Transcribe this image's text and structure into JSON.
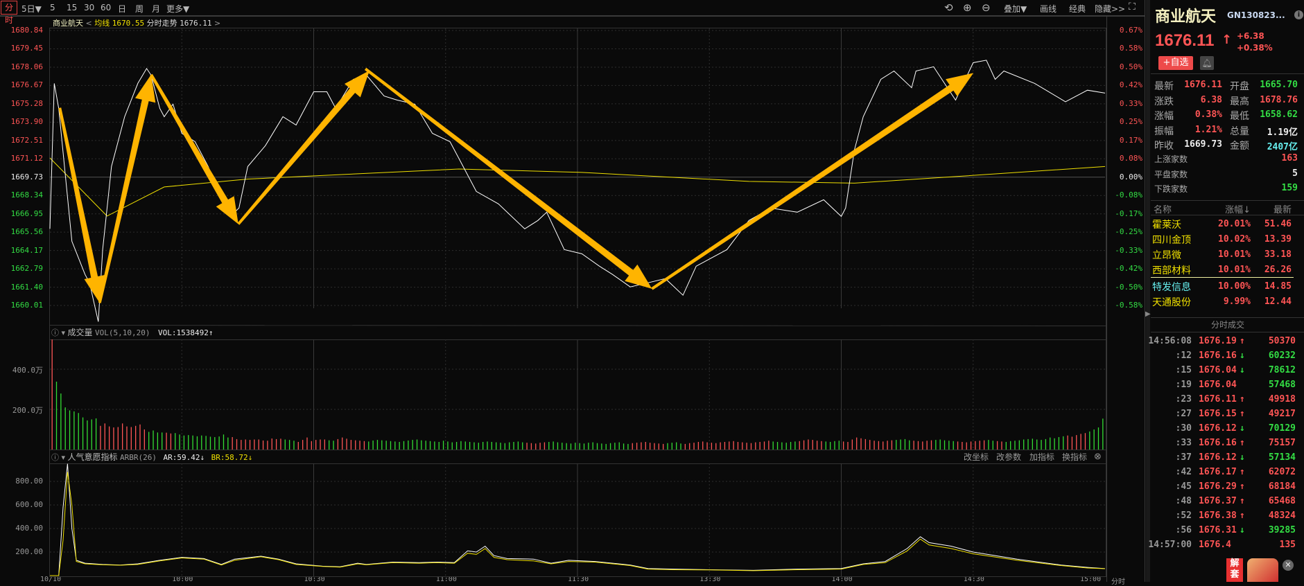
{
  "toolbar": {
    "periods": [
      "分时",
      "5日▼",
      "5",
      "15",
      "30",
      "60",
      "日",
      "周",
      "月",
      "更多▼"
    ],
    "active_period": "分时",
    "right_tools": {
      "undo_icon": "undo-icon",
      "zoom_in_icon": "zoom-in-icon",
      "zoom_out_icon": "zoom-out-icon",
      "overlay": "叠加▼",
      "draw": "画线",
      "classic": "经典",
      "hide": "隐藏>>",
      "fullscreen_icon": "fullscreen-icon"
    }
  },
  "info_line": {
    "name": "商业航天",
    "avg_label": "均线",
    "avg_value": "1670.55",
    "trend_label": "分时走势",
    "trend_value": "1676.11",
    "open_bracket": "<",
    "close_bracket": ">"
  },
  "price_axis": {
    "left": [
      "1680.84",
      "1679.45",
      "1678.06",
      "1676.67",
      "1675.28",
      "1673.90",
      "1672.51",
      "1671.12",
      "1669.73",
      "1668.34",
      "1666.95",
      "1665.56",
      "1664.17",
      "1662.79",
      "1661.40",
      "1660.01"
    ],
    "right": [
      "0.67%",
      "0.58%",
      "0.50%",
      "0.42%",
      "0.33%",
      "0.25%",
      "0.17%",
      "0.08%",
      "0.00%",
      "-0.08%",
      "-0.17%",
      "-0.25%",
      "-0.33%",
      "-0.42%",
      "-0.50%",
      "-0.58%"
    ]
  },
  "time_axis": [
    "10/10",
    "10:00",
    "10:30",
    "11:00",
    "11:30",
    "13:30",
    "14:00",
    "14:30",
    "15:00"
  ],
  "time_axis_end": "分时",
  "volume_panel": {
    "title": "成交量",
    "params": "VOL(5,10,20)",
    "value": "VOL:1538492↑",
    "axis": [
      "400.0万",
      "200.0万"
    ]
  },
  "arbr_panel": {
    "title": "人气意愿指标",
    "params": "ARBR(26)",
    "ar": "AR:59.42↓",
    "br": "BR:58.72↓",
    "axis": [
      "800.00",
      "600.00",
      "400.00",
      "200.00"
    ],
    "buttons": [
      "改坐标",
      "改参数",
      "加指标",
      "换指标"
    ]
  },
  "colors": {
    "up": "#ff5555",
    "down": "#33dd33",
    "price_line": "#ffffff",
    "avg_line": "#f0e000",
    "annotation_arrow": "#ffb400",
    "background": "#0a0a0a"
  },
  "chart_data": [
    {
      "type": "line",
      "xlabel": "",
      "ylabel": "",
      "ylim": [
        1660.01,
        1680.84
      ],
      "prev_close": 1669.73,
      "series": [
        {
          "name": "分时走势",
          "x": [
            0,
            1,
            2,
            5,
            8,
            9,
            11,
            12,
            14,
            17,
            20,
            22,
            23,
            25,
            26,
            28,
            30,
            33,
            36,
            39,
            41,
            43,
            45,
            49,
            53,
            56,
            60,
            63,
            65,
            69,
            72,
            76,
            79,
            83,
            87,
            91,
            94,
            97,
            102,
            108,
            111,
            113,
            117,
            121,
            125,
            128,
            132,
            136,
            140,
            144,
            147,
            154,
            159,
            164,
            170,
            176,
            180,
            181,
            183,
            185,
            189,
            192,
            196,
            197,
            201,
            206,
            210,
            213,
            215,
            217,
            224,
            231,
            236,
            240
          ],
          "values": [
            1665.83,
            1676.84,
            1674.95,
            1664.89,
            1662.37,
            1661.74,
            1658.8,
            1664.26,
            1670.55,
            1674.32,
            1676.84,
            1677.97,
            1677.47,
            1674.95,
            1674.32,
            1675.27,
            1673.06,
            1672.43,
            1670.55,
            1668.03,
            1666.77,
            1667.4,
            1670.55,
            1672.12,
            1674.32,
            1673.69,
            1676.21,
            1676.21,
            1674.95,
            1677.15,
            1677.47,
            1675.89,
            1675.58,
            1675.27,
            1673.06,
            1672.43,
            1670.55,
            1668.66,
            1667.72,
            1665.83,
            1666.46,
            1667.09,
            1664.26,
            1663.94,
            1663.0,
            1662.37,
            1661.43,
            1661.74,
            1662.06,
            1660.8,
            1663.0,
            1664.26,
            1666.46,
            1667.4,
            1667.09,
            1668.03,
            1666.77,
            1667.4,
            1671.81,
            1674.32,
            1677.15,
            1677.78,
            1676.52,
            1677.78,
            1678.1,
            1675.58,
            1678.41,
            1678.6,
            1677.15,
            1677.78,
            1676.84,
            1675.45,
            1676.33,
            1676.11
          ]
        },
        {
          "name": "均线",
          "x": [
            0,
            13,
            26,
            45,
            70,
            93,
            121,
            159,
            183,
            206,
            240
          ],
          "values": [
            1671.2,
            1666.8,
            1669.0,
            1669.6,
            1670.0,
            1670.36,
            1670.1,
            1669.42,
            1669.29,
            1669.79,
            1670.55
          ]
        }
      ]
    },
    {
      "type": "bar",
      "ylabel": "成交量(万)",
      "values": [
        548,
        338,
        279,
        210,
        195,
        190,
        182,
        160,
        145,
        150,
        155,
        118,
        130,
        115,
        110,
        112,
        130,
        115,
        112,
        118,
        125,
        100,
        88,
        95,
        85,
        85,
        84,
        80,
        82,
        75,
        70,
        72,
        70,
        66,
        70,
        68,
        64,
        62,
        65,
        75,
        60,
        62,
        52,
        48,
        50,
        48,
        50,
        50,
        45,
        44,
        55,
        52,
        54,
        50,
        48,
        44,
        38,
        48,
        60,
        42,
        48,
        50,
        50,
        46,
        44,
        52,
        60,
        54,
        48,
        46,
        44,
        42,
        40,
        45,
        48,
        46,
        44,
        42,
        40,
        38,
        42,
        45,
        48,
        50,
        46,
        44,
        42,
        40,
        38,
        44,
        40,
        36,
        38,
        42,
        40,
        38,
        36,
        34,
        38,
        40,
        38,
        36,
        34,
        32,
        36,
        38,
        40,
        36,
        34,
        32,
        30,
        34,
        36,
        38,
        40,
        36,
        34,
        32,
        30,
        34,
        32,
        30,
        34,
        36,
        32,
        30,
        28,
        32,
        34,
        36,
        30,
        28,
        32,
        34,
        36,
        38,
        34,
        32,
        30,
        28,
        32,
        34,
        36,
        30,
        28,
        32,
        34,
        38,
        40,
        36,
        34,
        32,
        36,
        38,
        40,
        42,
        38,
        36,
        34,
        32,
        36,
        38,
        40,
        44,
        40,
        38,
        36,
        34,
        38,
        40,
        42,
        46,
        50,
        48,
        44,
        42,
        40,
        38,
        42,
        44,
        40,
        38,
        50,
        60,
        56,
        52,
        48,
        44,
        42,
        40,
        44,
        46,
        48,
        50,
        52,
        46,
        44,
        42,
        40,
        44,
        46,
        48,
        50,
        46,
        44,
        42,
        40,
        38,
        36,
        40,
        42,
        44,
        46,
        48,
        44,
        42,
        40,
        38,
        42,
        44,
        46,
        50,
        52,
        54,
        50,
        48,
        52,
        60,
        56,
        62,
        66,
        70,
        64,
        72,
        78,
        82,
        90,
        100,
        110,
        154
      ],
      "ylim": [
        0,
        560
      ]
    },
    {
      "type": "line",
      "ylim": [
        0,
        1000
      ],
      "series": [
        {
          "name": "AR",
          "x": [
            0,
            2,
            3,
            4,
            5,
            6,
            8,
            12,
            16,
            20,
            25,
            30,
            35,
            39,
            42,
            48,
            52,
            56,
            62,
            66,
            70,
            72,
            78,
            84,
            88,
            92,
            95,
            97,
            99,
            101,
            104,
            110,
            114,
            118,
            124,
            128,
            132,
            136,
            142,
            150,
            160,
            170,
            180,
            185,
            190,
            195,
            198,
            200,
            205,
            210,
            220,
            230,
            236,
            240
          ],
          "values": [
            0,
            0,
            580,
            950,
            400,
            130,
            105,
            95,
            90,
            100,
            130,
            155,
            145,
            95,
            140,
            165,
            140,
            100,
            80,
            75,
            105,
            95,
            115,
            110,
            115,
            110,
            210,
            200,
            250,
            170,
            145,
            140,
            105,
            130,
            120,
            105,
            90,
            60,
            55,
            50,
            45,
            55,
            60,
            100,
            120,
            230,
            330,
            280,
            250,
            200,
            140,
            90,
            70,
            59.42
          ]
        },
        {
          "name": "BR",
          "x": [
            0,
            2,
            3,
            4,
            5,
            6,
            8,
            12,
            16,
            20,
            25,
            30,
            35,
            39,
            42,
            48,
            52,
            56,
            62,
            66,
            70,
            72,
            78,
            84,
            88,
            92,
            95,
            97,
            99,
            101,
            104,
            110,
            114,
            118,
            124,
            128,
            132,
            136,
            142,
            150,
            160,
            170,
            180,
            185,
            190,
            195,
            198,
            200,
            205,
            210,
            220,
            230,
            236,
            240
          ],
          "values": [
            0,
            0,
            300,
            880,
            600,
            120,
            100,
            92,
            88,
            95,
            125,
            150,
            140,
            90,
            130,
            160,
            135,
            95,
            78,
            72,
            100,
            92,
            110,
            105,
            110,
            105,
            190,
            180,
            230,
            155,
            135,
            125,
            100,
            120,
            115,
            100,
            85,
            55,
            50,
            48,
            42,
            50,
            55,
            95,
            110,
            210,
            310,
            260,
            230,
            185,
            130,
            85,
            65,
            58.72
          ]
        }
      ]
    }
  ],
  "panel": {
    "name": "商业航天",
    "code": "GN130823...",
    "price": "1676.11",
    "price_arrow": "↑",
    "change": "+6.38",
    "change_pct": "+0.38%",
    "add_watch": "+自选",
    "stats": [
      {
        "l1": "最新",
        "v1": "1676.11",
        "c1": "red",
        "l2": "开盘",
        "v2": "1665.70",
        "c2": "green"
      },
      {
        "l1": "涨跌",
        "v1": "6.38",
        "c1": "red",
        "l2": "最高",
        "v2": "1678.76",
        "c2": "red"
      },
      {
        "l1": "涨幅",
        "v1": "0.38%",
        "c1": "red",
        "l2": "最低",
        "v2": "1658.62",
        "c2": "green"
      },
      {
        "l1": "振幅",
        "v1": "1.21%",
        "c1": "red",
        "l2": "总量",
        "v2": "1.19亿",
        "c2": "white"
      },
      {
        "l1": "昨收",
        "v1": "1669.73",
        "c1": "white",
        "l2": "金额",
        "v2": "2407亿",
        "c2": "cyan"
      }
    ],
    "breadth": [
      {
        "label": "上涨家数",
        "value": "163",
        "color": "red"
      },
      {
        "label": "平盘家数",
        "value": "5",
        "color": "white"
      },
      {
        "label": "下跌家数",
        "value": "159",
        "color": "green"
      }
    ],
    "list_header": {
      "name": "名称",
      "pct": "涨幅↓",
      "last": "最新"
    },
    "list": [
      {
        "name": "霍莱沃",
        "pct": "20.01%",
        "last": "51.46",
        "color": "yellow"
      },
      {
        "name": "四川金顶",
        "pct": "10.02%",
        "last": "13.39",
        "color": "yellow"
      },
      {
        "name": "立昂微",
        "pct": "10.01%",
        "last": "33.18",
        "color": "yellow"
      },
      {
        "name": "西部材料",
        "pct": "10.01%",
        "last": "26.26",
        "color": "yellow"
      },
      {
        "name": "特发信息",
        "pct": "10.00%",
        "last": "14.85",
        "color": "cyan"
      },
      {
        "name": "天通股份",
        "pct": "9.99%",
        "last": "12.44",
        "color": "yellow"
      }
    ],
    "trades_title": "分时成交",
    "trades": [
      {
        "time": "14:56:08",
        "price": "1676.19",
        "dir": "↑",
        "vol": "50370",
        "vc": "red"
      },
      {
        "time": ":12",
        "price": "1676.16",
        "dir": "↓",
        "vol": "60232",
        "vc": "green"
      },
      {
        "time": ":15",
        "price": "1676.04",
        "dir": "↓",
        "vol": "78612",
        "vc": "green"
      },
      {
        "time": ":19",
        "price": "1676.04",
        "dir": "",
        "vol": "57468",
        "vc": "green"
      },
      {
        "time": ":23",
        "price": "1676.11",
        "dir": "↑",
        "vol": "49918",
        "vc": "red"
      },
      {
        "time": ":27",
        "price": "1676.15",
        "dir": "↑",
        "vol": "49217",
        "vc": "red"
      },
      {
        "time": ":30",
        "price": "1676.12",
        "dir": "↓",
        "vol": "70129",
        "vc": "green"
      },
      {
        "time": ":33",
        "price": "1676.16",
        "dir": "↑",
        "vol": "75157",
        "vc": "red"
      },
      {
        "time": ":37",
        "price": "1676.12",
        "dir": "↓",
        "vol": "57134",
        "vc": "green"
      },
      {
        "time": ":42",
        "price": "1676.17",
        "dir": "↑",
        "vol": "62072",
        "vc": "red"
      },
      {
        "time": ":45",
        "price": "1676.29",
        "dir": "↑",
        "vol": "68184",
        "vc": "red"
      },
      {
        "time": ":48",
        "price": "1676.37",
        "dir": "↑",
        "vol": "65468",
        "vc": "red"
      },
      {
        "time": ":52",
        "price": "1676.38",
        "dir": "↑",
        "vol": "48324",
        "vc": "red"
      },
      {
        "time": ":56",
        "price": "1676.31",
        "dir": "↓",
        "vol": "39285",
        "vc": "green"
      },
      {
        "time": "14:57:00",
        "price": "1676.4",
        "dir": "",
        "vol": "135",
        "vc": "red"
      }
    ],
    "promo_badge": "解套"
  }
}
